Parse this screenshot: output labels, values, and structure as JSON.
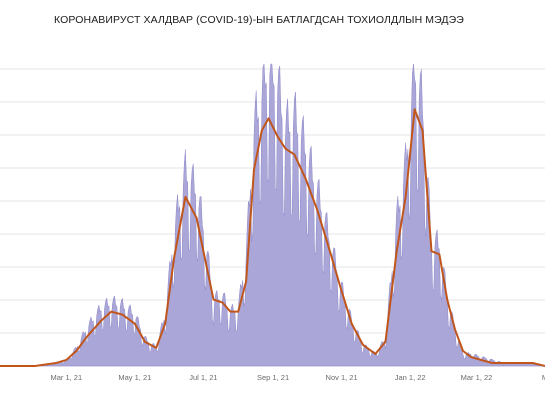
{
  "chart_title": "КОРОНАВИРУСТ ХАЛДВАР (COVID-19)-ЫН БАТЛАГДСАН ТОХИОЛДЛЫН МЭДЭЭ",
  "chart_data": {
    "type": "area",
    "title": "КОРОНАВИРУСТ ХАЛДВАР (COVID-19)-ЫН БАТЛАГДСАН ТОХИОЛДЛЫН МЭДЭЭ",
    "xlabel": "",
    "ylabel": "",
    "grid": true,
    "x_tick_labels": [
      "Mar 1, 21",
      "May 1, 21",
      "Jul 1, 21",
      "Sep 1, 21",
      "Nov 1, 21",
      "Jan 1, 22",
      "Mar 1, 22",
      "M"
    ],
    "x_tick_dates": [
      "2021-03-01",
      "2021-05-01",
      "2021-07-01",
      "2021-09-01",
      "2021-11-01",
      "2022-01-01",
      "2022-03-01",
      "2022-05-01"
    ],
    "x_range": [
      "2021-01-01",
      "2022-05-01"
    ],
    "y_range_relative": [
      0,
      1
    ],
    "colors": {
      "daily": "#aaa6d8",
      "daily_edge": "#8f8ac9",
      "average": "#c0561b",
      "grid": "#e6e6e6"
    },
    "series": [
      {
        "kind": "daily_cases",
        "style": "area",
        "dates": [
          "2021-01-01",
          "2021-02-01",
          "2021-02-20",
          "2021-03-01",
          "2021-03-10",
          "2021-03-20",
          "2021-04-01",
          "2021-04-10",
          "2021-04-20",
          "2021-05-01",
          "2021-05-10",
          "2021-05-20",
          "2021-05-28",
          "2021-06-05",
          "2021-06-15",
          "2021-06-25",
          "2021-07-01",
          "2021-07-10",
          "2021-07-18",
          "2021-07-25",
          "2021-08-01",
          "2021-08-08",
          "2021-08-15",
          "2021-08-22",
          "2021-08-28",
          "2021-09-05",
          "2021-09-12",
          "2021-09-20",
          "2021-09-30",
          "2021-10-10",
          "2021-10-20",
          "2021-10-31",
          "2021-11-10",
          "2021-11-20",
          "2021-12-01",
          "2021-12-10",
          "2021-12-20",
          "2021-12-28",
          "2022-01-05",
          "2022-01-12",
          "2022-01-20",
          "2022-01-27",
          "2022-02-03",
          "2022-02-10",
          "2022-02-17",
          "2022-02-24",
          "2022-03-05",
          "2022-03-15",
          "2022-03-25",
          "2022-04-05",
          "2022-04-20",
          "2022-05-01"
        ],
        "values": [
          0.0,
          0.0,
          0.01,
          0.02,
          0.06,
          0.13,
          0.19,
          0.21,
          0.2,
          0.17,
          0.09,
          0.06,
          0.17,
          0.45,
          0.64,
          0.58,
          0.46,
          0.22,
          0.23,
          0.18,
          0.19,
          0.37,
          0.78,
          0.9,
          1.0,
          0.93,
          0.78,
          0.82,
          0.72,
          0.58,
          0.44,
          0.27,
          0.15,
          0.07,
          0.04,
          0.09,
          0.48,
          0.66,
          0.98,
          0.86,
          0.41,
          0.4,
          0.23,
          0.12,
          0.04,
          0.04,
          0.03,
          0.02,
          0.01,
          0.01,
          0.01,
          0.0
        ]
      },
      {
        "kind": "moving_average",
        "style": "line",
        "dates": [
          "2021-01-01",
          "2021-02-01",
          "2021-02-20",
          "2021-03-01",
          "2021-03-10",
          "2021-03-20",
          "2021-04-01",
          "2021-04-10",
          "2021-04-20",
          "2021-05-01",
          "2021-05-10",
          "2021-05-20",
          "2021-05-28",
          "2021-06-05",
          "2021-06-15",
          "2021-06-25",
          "2021-07-01",
          "2021-07-10",
          "2021-07-18",
          "2021-07-25",
          "2021-08-01",
          "2021-08-08",
          "2021-08-15",
          "2021-08-22",
          "2021-08-28",
          "2021-09-05",
          "2021-09-12",
          "2021-09-20",
          "2021-09-30",
          "2021-10-10",
          "2021-10-20",
          "2021-10-31",
          "2021-11-10",
          "2021-11-20",
          "2021-12-01",
          "2021-12-10",
          "2021-12-20",
          "2021-12-28",
          "2022-01-05",
          "2022-01-12",
          "2022-01-20",
          "2022-01-27",
          "2022-02-03",
          "2022-02-10",
          "2022-02-17",
          "2022-02-24",
          "2022-03-05",
          "2022-03-15",
          "2022-03-25",
          "2022-04-05",
          "2022-04-20",
          "2022-05-01"
        ],
        "values": [
          0.0,
          0.0,
          0.01,
          0.02,
          0.05,
          0.1,
          0.15,
          0.18,
          0.17,
          0.14,
          0.08,
          0.06,
          0.14,
          0.36,
          0.56,
          0.49,
          0.38,
          0.22,
          0.21,
          0.18,
          0.18,
          0.28,
          0.65,
          0.78,
          0.82,
          0.76,
          0.72,
          0.7,
          0.62,
          0.52,
          0.4,
          0.26,
          0.14,
          0.07,
          0.04,
          0.08,
          0.38,
          0.56,
          0.85,
          0.78,
          0.38,
          0.37,
          0.22,
          0.12,
          0.05,
          0.03,
          0.02,
          0.01,
          0.01,
          0.01,
          0.01,
          0.0
        ]
      }
    ]
  }
}
